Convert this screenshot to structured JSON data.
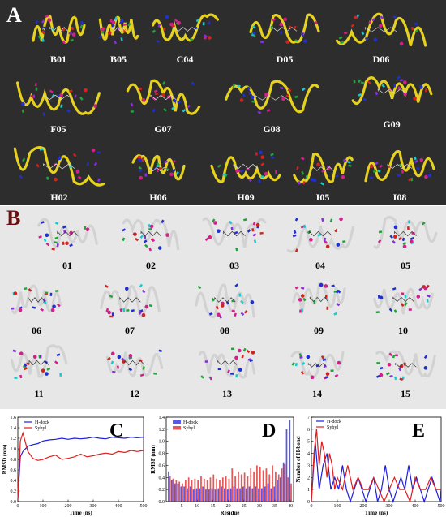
{
  "figure": {
    "panel_a": {
      "letter": "A",
      "labels": [
        "B01",
        "B05",
        "C04",
        "D05",
        "D06",
        "F05",
        "G07",
        "G08",
        "G09",
        "H02",
        "H06",
        "H09",
        "I05",
        "I08"
      ]
    },
    "panel_b": {
      "letter": "B",
      "labels": [
        "01",
        "02",
        "03",
        "04",
        "05",
        "06",
        "07",
        "08",
        "09",
        "10",
        "11",
        "12",
        "13",
        "14",
        "15"
      ]
    }
  },
  "colors": {
    "panel_a_bg": "#2d2d2d",
    "panel_b_bg": "#e7e7e7",
    "ribbon_a": "#e6d21e",
    "ribbon_b": "#d2d2d2",
    "h_dock": "#1f1fe0",
    "sybyl": "#e01f1f"
  },
  "chart_data": [
    {
      "type": "line",
      "letter": "C",
      "ylabel": "RMSD (nm)",
      "xlabel": "Time (ns)",
      "xlim": [
        0,
        500
      ],
      "ylim": [
        0.0,
        1.6
      ],
      "xticks": [
        "0",
        "100",
        "200",
        "300",
        "400",
        "500"
      ],
      "yticks": [
        "0.0",
        "0.2",
        "0.4",
        "0.6",
        "0.8",
        "1.0",
        "1.2",
        "1.4",
        "1.6"
      ],
      "legend": [
        "H-dock",
        "Sybyl"
      ],
      "series": [
        {
          "name": "H-dock",
          "x": [
            0,
            10,
            20,
            40,
            60,
            80,
            100,
            125,
            150,
            175,
            200,
            225,
            250,
            275,
            300,
            325,
            350,
            375,
            400,
            425,
            450,
            475,
            500
          ],
          "values": [
            0.05,
            0.85,
            0.95,
            1.05,
            1.08,
            1.1,
            1.15,
            1.17,
            1.18,
            1.2,
            1.18,
            1.2,
            1.19,
            1.2,
            1.22,
            1.2,
            1.19,
            1.22,
            1.21,
            1.2,
            1.22,
            1.21,
            1.22
          ]
        },
        {
          "name": "Sybyl",
          "x": [
            0,
            10,
            20,
            40,
            60,
            80,
            100,
            125,
            150,
            175,
            200,
            225,
            250,
            275,
            300,
            325,
            350,
            375,
            400,
            425,
            450,
            475,
            500
          ],
          "values": [
            0.05,
            1.15,
            1.3,
            0.95,
            0.82,
            0.78,
            0.8,
            0.85,
            0.88,
            0.8,
            0.82,
            0.85,
            0.9,
            0.85,
            0.87,
            0.9,
            0.92,
            0.9,
            0.95,
            0.93,
            0.97,
            0.95,
            0.97
          ]
        }
      ]
    },
    {
      "type": "bar",
      "letter": "D",
      "ylabel": "RMSF (nm)",
      "xlabel": "Residue",
      "xlim": [
        0,
        41
      ],
      "ylim": [
        0.0,
        1.4
      ],
      "xticks": [
        "5",
        "10",
        "15",
        "20",
        "25",
        "30",
        "35",
        "40"
      ],
      "yticks": [
        "0.0",
        "0.2",
        "0.4",
        "0.6",
        "0.8",
        "1.0",
        "1.2",
        "1.4"
      ],
      "legend": [
        "H-dock",
        "Sybyl"
      ],
      "categories": [
        1,
        2,
        3,
        4,
        5,
        6,
        7,
        8,
        9,
        10,
        11,
        12,
        13,
        14,
        15,
        16,
        17,
        18,
        19,
        20,
        21,
        22,
        23,
        24,
        25,
        26,
        27,
        28,
        29,
        30,
        31,
        32,
        33,
        34,
        35,
        36,
        37,
        38,
        39,
        40
      ],
      "series": [
        {
          "name": "H-dock",
          "values": [
            0.5,
            0.35,
            0.3,
            0.3,
            0.25,
            0.25,
            0.22,
            0.25,
            0.2,
            0.22,
            0.22,
            0.25,
            0.2,
            0.2,
            0.22,
            0.2,
            0.22,
            0.25,
            0.22,
            0.2,
            0.22,
            0.25,
            0.22,
            0.22,
            0.25,
            0.22,
            0.25,
            0.22,
            0.25,
            0.22,
            0.22,
            0.25,
            0.3,
            0.22,
            0.25,
            0.35,
            0.4,
            0.65,
            1.2,
            1.35
          ]
        },
        {
          "name": "Sybyl",
          "values": [
            0.42,
            0.38,
            0.35,
            0.33,
            0.3,
            0.35,
            0.4,
            0.35,
            0.38,
            0.35,
            0.42,
            0.38,
            0.35,
            0.4,
            0.45,
            0.38,
            0.35,
            0.4,
            0.42,
            0.38,
            0.55,
            0.42,
            0.5,
            0.45,
            0.48,
            0.42,
            0.55,
            0.5,
            0.6,
            0.58,
            0.52,
            0.55,
            0.45,
            0.6,
            0.5,
            0.45,
            0.55,
            0.62,
            0.4,
            0.3
          ]
        }
      ]
    },
    {
      "type": "line",
      "letter": "E",
      "ylabel": "Number of H-bond",
      "xlabel": "Time (ns)",
      "xlim": [
        0,
        500
      ],
      "ylim": [
        0,
        7
      ],
      "xticks": [
        "0",
        "100",
        "200",
        "300",
        "400",
        "500"
      ],
      "yticks": [
        "0",
        "1",
        "2",
        "3",
        "4",
        "5",
        "6",
        "7"
      ],
      "legend": [
        "H-dock",
        "Sybyl"
      ],
      "series": [
        {
          "name": "H-dock",
          "x": [
            0,
            15,
            30,
            45,
            60,
            75,
            90,
            105,
            120,
            135,
            150,
            165,
            180,
            195,
            210,
            225,
            240,
            255,
            270,
            285,
            300,
            315,
            330,
            345,
            360,
            375,
            390,
            405,
            420,
            435,
            450,
            465,
            480,
            495,
            500
          ],
          "values": [
            0,
            5,
            1,
            3,
            4,
            1,
            2,
            1,
            3,
            1,
            0,
            1,
            2,
            1,
            0,
            1,
            2,
            0,
            1,
            3,
            1,
            0,
            1,
            2,
            1,
            3,
            1,
            2,
            1,
            0,
            1,
            2,
            1,
            0,
            1
          ]
        },
        {
          "name": "Sybyl",
          "x": [
            0,
            10,
            20,
            30,
            40,
            50,
            60,
            70,
            80,
            90,
            100,
            120,
            140,
            160,
            180,
            200,
            220,
            240,
            260,
            280,
            300,
            320,
            340,
            360,
            380,
            400,
            420,
            440,
            460,
            480,
            500
          ],
          "values": [
            0,
            4,
            6,
            3,
            5,
            4,
            2,
            4,
            3,
            1,
            2,
            1,
            3,
            1,
            2,
            1,
            1,
            2,
            1,
            0,
            1,
            2,
            1,
            1,
            0,
            2,
            1,
            1,
            2,
            1,
            1
          ]
        }
      ]
    }
  ]
}
